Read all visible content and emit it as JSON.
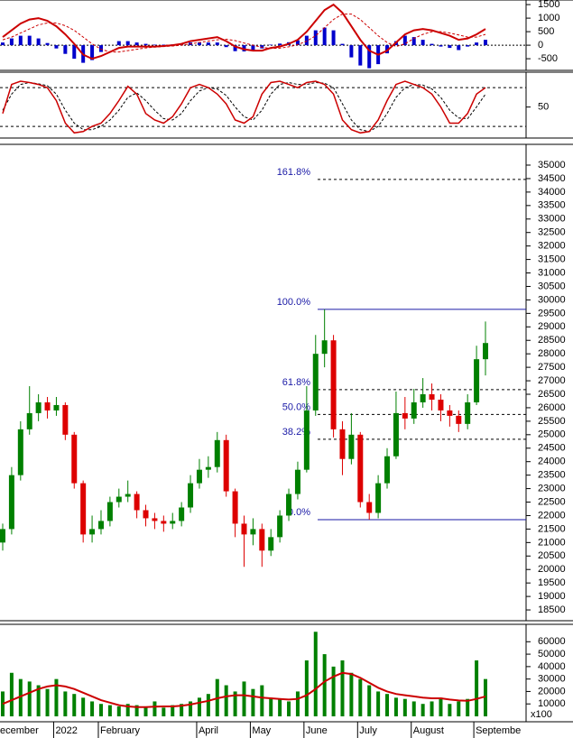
{
  "chart_data": [
    {
      "type": "line",
      "ylim": [
        -930,
        1670
      ],
      "yticks": [
        1500,
        1000,
        500,
        0,
        -500
      ],
      "zero_line": true,
      "series": [
        {
          "kind": "bar",
          "color": "#0000cc",
          "values": [
            100,
            250,
            350,
            350,
            250,
            80,
            -120,
            -320,
            -500,
            -650,
            -550,
            -250,
            0,
            150,
            150,
            100,
            50,
            20,
            20,
            30,
            50,
            100,
            100,
            100,
            100,
            -70,
            -220,
            -230,
            -200,
            -120,
            20,
            60,
            110,
            180,
            350,
            550,
            650,
            550,
            50,
            -450,
            -750,
            -850,
            -700,
            -300,
            150,
            350,
            300,
            200,
            50,
            -50,
            -100,
            -180,
            -50,
            100,
            200
          ]
        },
        {
          "kind": "line",
          "color": "#cc0000",
          "dashed": true,
          "width": 1,
          "values": [
            200,
            300,
            450,
            600,
            750,
            820,
            820,
            720,
            550,
            300,
            50,
            -150,
            -250,
            -250,
            -200,
            -150,
            -100,
            -70,
            -50,
            -30,
            0,
            50,
            100,
            150,
            200,
            220,
            170,
            80,
            0,
            -80,
            -120,
            -110,
            -60,
            20,
            150,
            350,
            650,
            950,
            1150,
            1150,
            950,
            650,
            350,
            100,
            -50,
            50,
            250,
            400,
            500,
            500,
            450,
            380,
            300,
            300,
            400
          ]
        },
        {
          "kind": "line",
          "color": "#cc0000",
          "dashed": false,
          "width": 2,
          "values": [
            300,
            550,
            800,
            950,
            1000,
            900,
            700,
            400,
            50,
            -350,
            -500,
            -400,
            -250,
            -100,
            -50,
            -50,
            -50,
            -50,
            -30,
            0,
            50,
            150,
            200,
            250,
            300,
            150,
            -50,
            -150,
            -200,
            -200,
            -100,
            -50,
            50,
            200,
            500,
            900,
            1300,
            1500,
            1200,
            700,
            200,
            -200,
            -350,
            -200,
            100,
            400,
            550,
            600,
            550,
            450,
            350,
            200,
            250,
            400,
            600
          ]
        }
      ]
    },
    {
      "type": "line",
      "ylim": [
        2,
        104
      ],
      "yticks": [
        50
      ],
      "levels": [
        20,
        80
      ],
      "series": [
        {
          "kind": "line",
          "color": "#000000",
          "dashed": true,
          "width": 1,
          "values": [
            45,
            70,
            85,
            88,
            86,
            83,
            70,
            45,
            25,
            15,
            15,
            20,
            30,
            45,
            65,
            72,
            60,
            45,
            32,
            30,
            40,
            60,
            75,
            80,
            78,
            68,
            50,
            35,
            30,
            45,
            70,
            85,
            88,
            85,
            85,
            88,
            87,
            80,
            55,
            30,
            15,
            12,
            20,
            40,
            65,
            80,
            85,
            84,
            78,
            65,
            45,
            33,
            32,
            50,
            70
          ]
        },
        {
          "kind": "line",
          "color": "#cc0000",
          "dashed": false,
          "width": 1.5,
          "values": [
            40,
            85,
            90,
            88,
            85,
            80,
            60,
            25,
            10,
            12,
            20,
            25,
            40,
            60,
            82,
            70,
            40,
            30,
            25,
            35,
            55,
            80,
            85,
            80,
            70,
            55,
            30,
            25,
            35,
            70,
            88,
            90,
            85,
            80,
            88,
            90,
            85,
            70,
            30,
            15,
            10,
            12,
            30,
            60,
            85,
            90,
            85,
            80,
            70,
            50,
            25,
            25,
            40,
            70,
            80
          ]
        }
      ]
    },
    {
      "type": "candlestick",
      "ylim": [
        18100,
        35770
      ],
      "yticks": [
        18500,
        19000,
        19500,
        20000,
        20500,
        21000,
        21500,
        22000,
        22500,
        23000,
        23500,
        24000,
        24500,
        25000,
        25500,
        26000,
        26500,
        27000,
        27500,
        28000,
        28500,
        29000,
        29500,
        30000,
        30500,
        31000,
        31500,
        32000,
        32500,
        33000,
        33500,
        34000,
        34500,
        35000
      ],
      "up_color": "#008000",
      "down_color": "#dd0000",
      "open": [
        21000,
        21500,
        23500,
        25200,
        25800,
        26200,
        25900,
        26100,
        25000,
        23200,
        21300,
        21500,
        21800,
        22500,
        22700,
        22800,
        22200,
        21900,
        21800,
        21700,
        21800,
        22300,
        23200,
        23700,
        23800,
        24800,
        22900,
        21700,
        21300,
        21500,
        20700,
        21200,
        22000,
        22800,
        23700,
        25900,
        28000,
        28500,
        25200,
        24100,
        25000,
        22500,
        22100,
        23200,
        24200,
        25800,
        25600,
        26200,
        26500,
        26300,
        25900,
        25700,
        25400,
        26200,
        27800
      ],
      "high": [
        21700,
        23800,
        25500,
        26800,
        26500,
        26400,
        26400,
        26200,
        25100,
        23300,
        22000,
        22200,
        22700,
        23000,
        23300,
        22900,
        22400,
        22100,
        22000,
        22100,
        22500,
        23500,
        24100,
        24200,
        25100,
        25000,
        23000,
        22000,
        21900,
        21700,
        21500,
        22200,
        23000,
        24000,
        26800,
        28700,
        29650,
        28700,
        25500,
        25800,
        25100,
        22800,
        23500,
        24500,
        26600,
        26400,
        26700,
        27100,
        26900,
        26500,
        26100,
        25900,
        26500,
        28300,
        29200
      ],
      "low": [
        20700,
        21300,
        23300,
        25000,
        25500,
        25600,
        25700,
        24800,
        23000,
        21000,
        21000,
        21300,
        21600,
        22300,
        22500,
        21900,
        21600,
        21500,
        21400,
        21500,
        21600,
        22100,
        23000,
        23400,
        23600,
        22700,
        21200,
        20100,
        20900,
        20100,
        20500,
        21000,
        21800,
        22600,
        23600,
        25700,
        27500,
        24900,
        23500,
        23900,
        22300,
        21850,
        21900,
        23000,
        24100,
        25200,
        25400,
        26000,
        25900,
        25500,
        25300,
        25100,
        25200,
        26100,
        27200
      ],
      "close": [
        21500,
        23500,
        25200,
        25800,
        26200,
        25900,
        26100,
        25000,
        23200,
        21300,
        21500,
        21800,
        22500,
        22700,
        22800,
        22200,
        21900,
        21800,
        21700,
        21800,
        22300,
        23200,
        23700,
        23800,
        24800,
        22900,
        21700,
        21300,
        21500,
        20700,
        21200,
        22000,
        22800,
        23700,
        25900,
        28000,
        28500,
        25200,
        24100,
        25000,
        22500,
        22100,
        23200,
        24200,
        25800,
        25600,
        26200,
        26500,
        26300,
        25900,
        25700,
        25400,
        26200,
        27800,
        28400
      ],
      "fib_color": "#1a1aa6",
      "fib_levels": [
        {
          "label": "161.8%",
          "value": 34470,
          "style": "dashed"
        },
        {
          "label": "100.0%",
          "value": 29650,
          "style": "solid"
        },
        {
          "label": "61.8%",
          "value": 26670,
          "style": "dashed"
        },
        {
          "label": "50.0%",
          "value": 25750,
          "style": "dashed"
        },
        {
          "label": "38.2%",
          "value": 24830,
          "style": "dashed"
        },
        {
          "label": "0.0%",
          "value": 21850,
          "style": "solid"
        }
      ]
    },
    {
      "type": "bar",
      "ylim": [
        0,
        74000
      ],
      "yticks": [
        10000,
        20000,
        30000,
        40000,
        50000,
        60000
      ],
      "scale_label": "x100",
      "categories": [
        "ecember",
        null,
        null,
        null,
        null,
        null,
        "2022",
        null,
        null,
        null,
        null,
        "February",
        null,
        null,
        null,
        null,
        null,
        null,
        null,
        null,
        null,
        null,
        "April",
        null,
        null,
        null,
        null,
        null,
        "May",
        null,
        null,
        null,
        null,
        null,
        "June",
        null,
        null,
        null,
        null,
        null,
        "July",
        null,
        null,
        null,
        null,
        null,
        "August",
        null,
        null,
        null,
        null,
        null,
        null,
        "Septembe",
        null
      ],
      "series": [
        {
          "kind": "bar",
          "color": "#008000",
          "values": [
            20000,
            35000,
            30000,
            28000,
            25000,
            22000,
            30000,
            20000,
            18000,
            15000,
            12000,
            10000,
            9000,
            8000,
            10000,
            9000,
            8000,
            12000,
            7000,
            9000,
            10000,
            12000,
            15000,
            18000,
            30000,
            25000,
            20000,
            28000,
            22000,
            25000,
            15000,
            14000,
            12000,
            20000,
            45000,
            68000,
            50000,
            40000,
            45000,
            35000,
            30000,
            25000,
            20000,
            18000,
            15000,
            14000,
            12000,
            10000,
            12000,
            15000,
            10000,
            12000,
            14000,
            45000,
            30000
          ]
        },
        {
          "kind": "line",
          "color": "#cc0000",
          "dashed": false,
          "width": 2,
          "values": [
            10000,
            13000,
            16000,
            19000,
            22000,
            24000,
            25000,
            24000,
            22000,
            19000,
            16000,
            13000,
            11000,
            9000,
            8000,
            7500,
            7500,
            7800,
            8000,
            8000,
            8500,
            9500,
            11000,
            12500,
            14500,
            16000,
            17000,
            17000,
            16000,
            15000,
            14500,
            14000,
            13500,
            14000,
            17000,
            22000,
            28000,
            32000,
            35000,
            34000,
            31000,
            27000,
            23000,
            20000,
            18000,
            17000,
            16000,
            15000,
            14500,
            14500,
            13500,
            12800,
            12500,
            14000,
            16000
          ]
        }
      ]
    }
  ]
}
